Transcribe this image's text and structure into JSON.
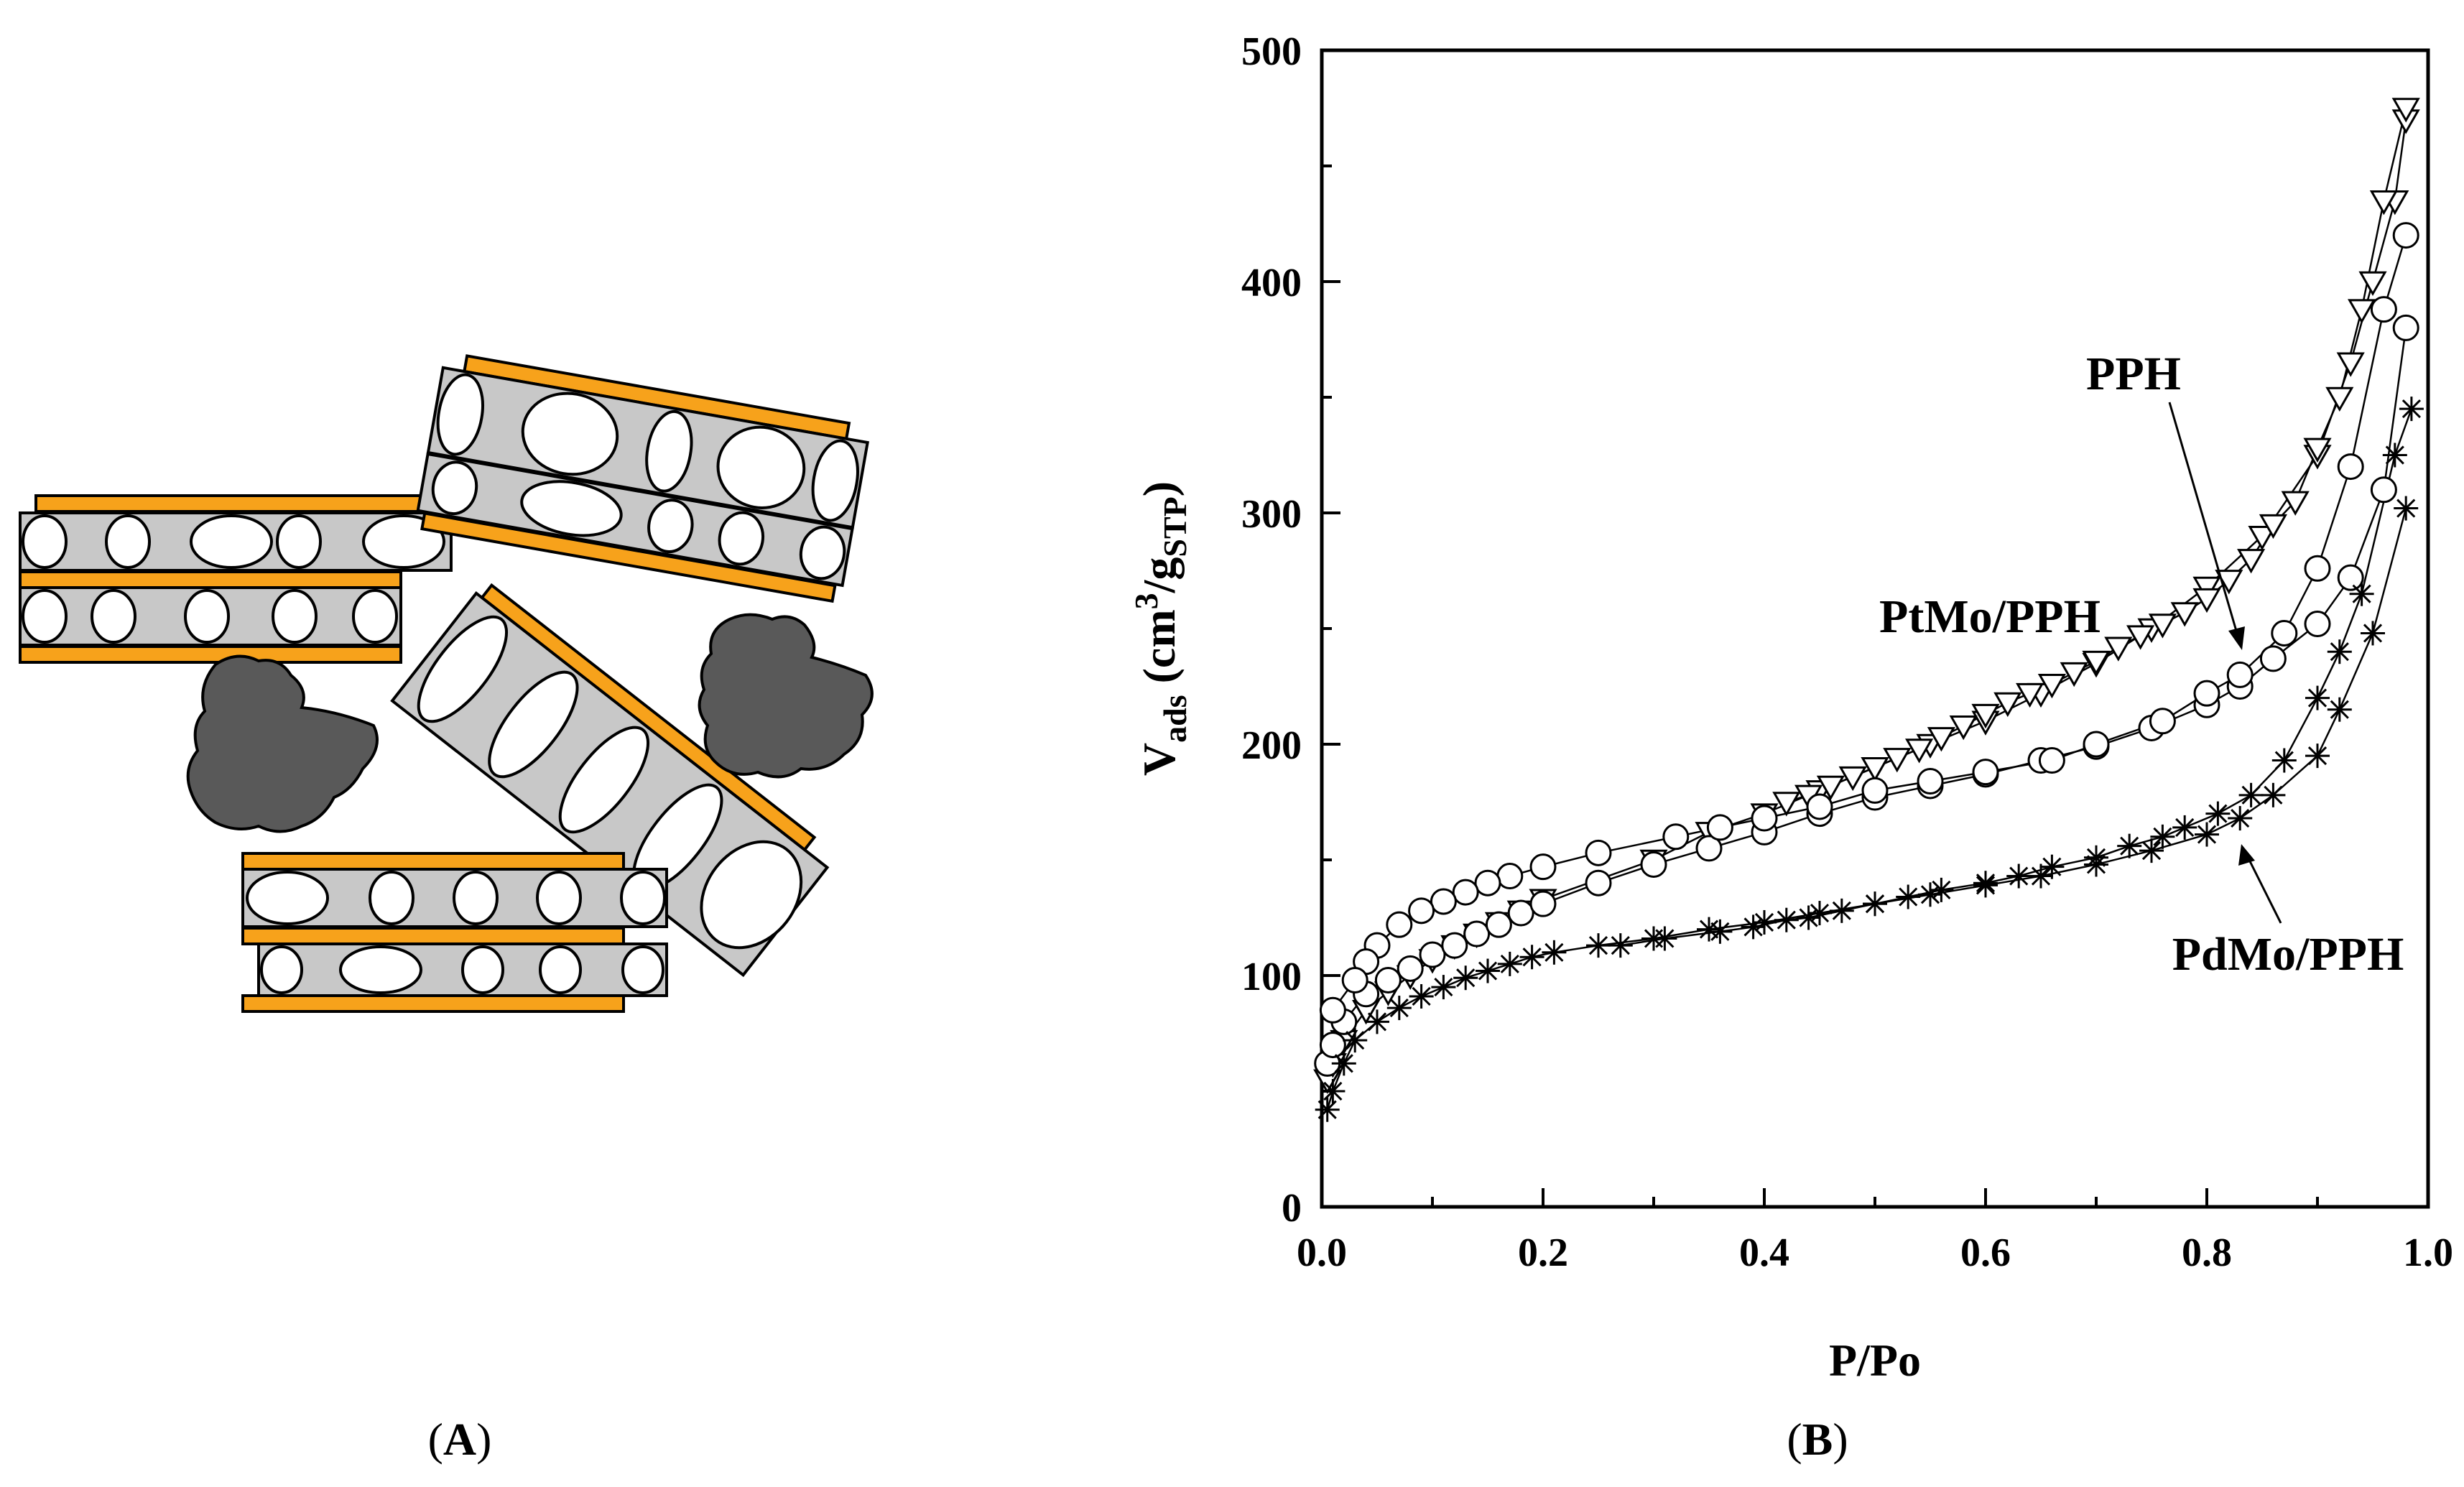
{
  "panels": {
    "a_label": "A",
    "b_label": "B"
  },
  "colors": {
    "layer_orange": "#f7a21b",
    "pillar_gray": "#c8c8c8",
    "particle_gray": "#595959",
    "line": "#000000"
  },
  "chart_data": {
    "type": "line",
    "xlabel": "P/Po",
    "ylabel": {
      "main": "V",
      "sub": "ads",
      "rest": " (cm",
      "sup": "3",
      "rest2": "/g",
      "sub2": "STP",
      "close": ")"
    },
    "xlim": [
      0.0,
      1.0
    ],
    "ylim": [
      0,
      500
    ],
    "xticks": [
      "0.0",
      "0.2",
      "0.4",
      "0.6",
      "0.8",
      "1.0"
    ],
    "yticks": [
      "0",
      "100",
      "200",
      "300",
      "400",
      "500"
    ],
    "grid": false,
    "legend": "none",
    "annotations": [
      {
        "text": "PPH",
        "points_to": [
          0.83,
          232
        ]
      },
      {
        "text": "PtMo/PPH"
      },
      {
        "text": "PdMo/PPH",
        "points_to": [
          0.84,
          160
        ]
      }
    ],
    "series": [
      {
        "marker": "triangle-down",
        "adsorption": {
          "x": [
            0.005,
            0.01,
            0.02,
            0.04,
            0.06,
            0.08,
            0.1,
            0.12,
            0.14,
            0.16,
            0.18,
            0.2,
            0.3,
            0.35,
            0.4,
            0.45,
            0.5,
            0.55,
            0.6,
            0.65,
            0.7,
            0.75,
            0.8,
            0.85,
            0.9,
            0.93,
            0.95,
            0.97,
            0.98
          ],
          "y": [
            55,
            62,
            72,
            85,
            93,
            100,
            107,
            113,
            118,
            123,
            128,
            133,
            150,
            162,
            170,
            180,
            190,
            200,
            210,
            222,
            235,
            250,
            268,
            290,
            325,
            365,
            400,
            435,
            470
          ]
        },
        "desorption": {
          "x": [
            0.98,
            0.96,
            0.94,
            0.92,
            0.9,
            0.88,
            0.86,
            0.84,
            0.82,
            0.8,
            0.78,
            0.76,
            0.74,
            0.72,
            0.7,
            0.68,
            0.66,
            0.64,
            0.62,
            0.6,
            0.58,
            0.56,
            0.54,
            0.52,
            0.5,
            0.48,
            0.46,
            0.44,
            0.42
          ],
          "y": [
            475,
            435,
            388,
            350,
            328,
            305,
            295,
            280,
            271,
            263,
            257,
            252,
            247,
            242,
            236,
            231,
            226,
            222,
            218,
            213,
            208,
            203,
            198,
            194,
            190,
            186,
            182,
            178,
            175
          ]
        }
      },
      {
        "marker": "circle",
        "adsorption": {
          "x": [
            0.005,
            0.01,
            0.02,
            0.04,
            0.06,
            0.08,
            0.1,
            0.12,
            0.14,
            0.16,
            0.18,
            0.2,
            0.25,
            0.3,
            0.35,
            0.4,
            0.45,
            0.5,
            0.55,
            0.6,
            0.65,
            0.7,
            0.75,
            0.8,
            0.83,
            0.86,
            0.9,
            0.93,
            0.96,
            0.98
          ],
          "y": [
            62,
            70,
            80,
            92,
            98,
            103,
            109,
            113,
            118,
            122,
            127,
            131,
            140,
            148,
            155,
            162,
            170,
            177,
            182,
            187,
            193,
            199,
            207,
            217,
            225,
            237,
            252,
            272,
            310,
            380
          ]
        },
        "desorption": {
          "x": [
            0.98,
            0.96,
            0.93,
            0.9,
            0.87,
            0.83,
            0.8,
            0.76,
            0.7,
            0.66,
            0.6,
            0.55,
            0.5,
            0.45,
            0.4,
            0.36,
            0.32,
            0.25,
            0.2,
            0.17,
            0.15,
            0.13,
            0.11,
            0.09,
            0.07,
            0.05,
            0.04,
            0.03,
            0.01
          ],
          "y": [
            420,
            388,
            320,
            276,
            248,
            230,
            222,
            210,
            200,
            193,
            188,
            184,
            180,
            173,
            168,
            164,
            160,
            153,
            147,
            143,
            140,
            136,
            132,
            128,
            122,
            113,
            106,
            98,
            85
          ]
        }
      },
      {
        "marker": "asterisk",
        "adsorption": {
          "x": [
            0.005,
            0.01,
            0.02,
            0.03,
            0.05,
            0.07,
            0.09,
            0.11,
            0.13,
            0.15,
            0.17,
            0.19,
            0.21,
            0.25,
            0.3,
            0.35,
            0.4,
            0.45,
            0.5,
            0.55,
            0.6,
            0.65,
            0.7,
            0.75,
            0.8,
            0.83,
            0.86,
            0.9,
            0.92,
            0.95,
            0.98
          ],
          "y": [
            42,
            50,
            62,
            72,
            80,
            86,
            91,
            95,
            99,
            102,
            105,
            108,
            110,
            113,
            116,
            120,
            123,
            127,
            131,
            135,
            139,
            143,
            148,
            154,
            161,
            168,
            178,
            195,
            215,
            248,
            302
          ]
        },
        "desorption": {
          "x": [
            0.985,
            0.97,
            0.94,
            0.92,
            0.9,
            0.87,
            0.84,
            0.81,
            0.78,
            0.76,
            0.73,
            0.7,
            0.66,
            0.63,
            0.6,
            0.56,
            0.53,
            0.5,
            0.47,
            0.44,
            0.42,
            0.39,
            0.36,
            0.31,
            0.27
          ],
          "y": [
            345,
            325,
            265,
            240,
            220,
            193,
            178,
            170,
            164,
            160,
            156,
            151,
            147,
            143,
            140,
            137,
            134,
            131,
            128,
            125,
            124,
            121,
            119,
            116,
            113
          ]
        }
      }
    ]
  }
}
